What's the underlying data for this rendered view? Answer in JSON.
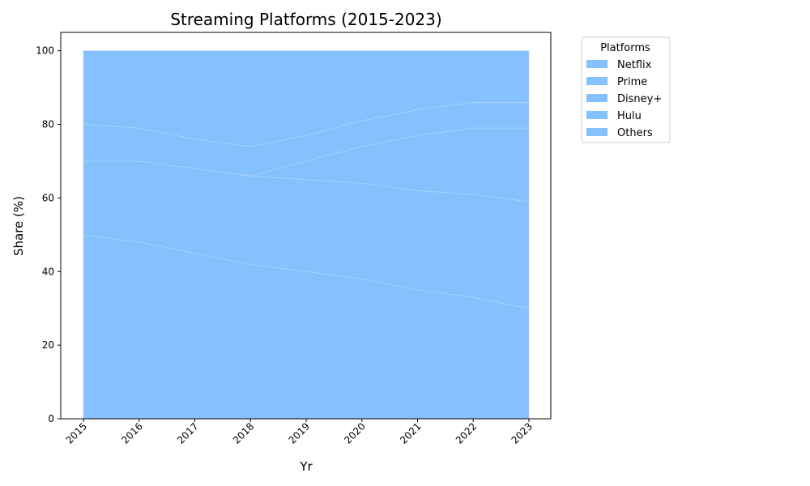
{
  "chart_data": {
    "type": "area",
    "stacked": true,
    "title": "Streaming Platforms (2015-2023)",
    "xlabel": "Yr",
    "ylabel": "Share (%)",
    "x": [
      "2015",
      "2016",
      "2017",
      "2018",
      "2019",
      "2020",
      "2021",
      "2022",
      "2023"
    ],
    "ylim": [
      0,
      105
    ],
    "yticks": [
      0,
      20,
      40,
      60,
      80,
      100
    ],
    "grid": false,
    "legend": {
      "title": "Platforms",
      "placement": "outside-top-right"
    },
    "series": [
      {
        "name": "Netflix",
        "values": [
          50,
          48,
          45,
          42,
          40,
          38,
          35,
          33,
          30
        ]
      },
      {
        "name": "Prime",
        "values": [
          20,
          22,
          23,
          24,
          25,
          26,
          27,
          28,
          29
        ]
      },
      {
        "name": "Disney+",
        "values": [
          0,
          0,
          0,
          0,
          5,
          10,
          15,
          18,
          20
        ]
      },
      {
        "name": "Hulu",
        "values": [
          10,
          9,
          8,
          8,
          7,
          7,
          7,
          7,
          7
        ]
      },
      {
        "name": "Others",
        "values": [
          20,
          21,
          24,
          26,
          23,
          19,
          16,
          14,
          14
        ]
      }
    ],
    "colors": {
      "fill": "#85c1ff",
      "edge": "#b5d9ff"
    }
  }
}
